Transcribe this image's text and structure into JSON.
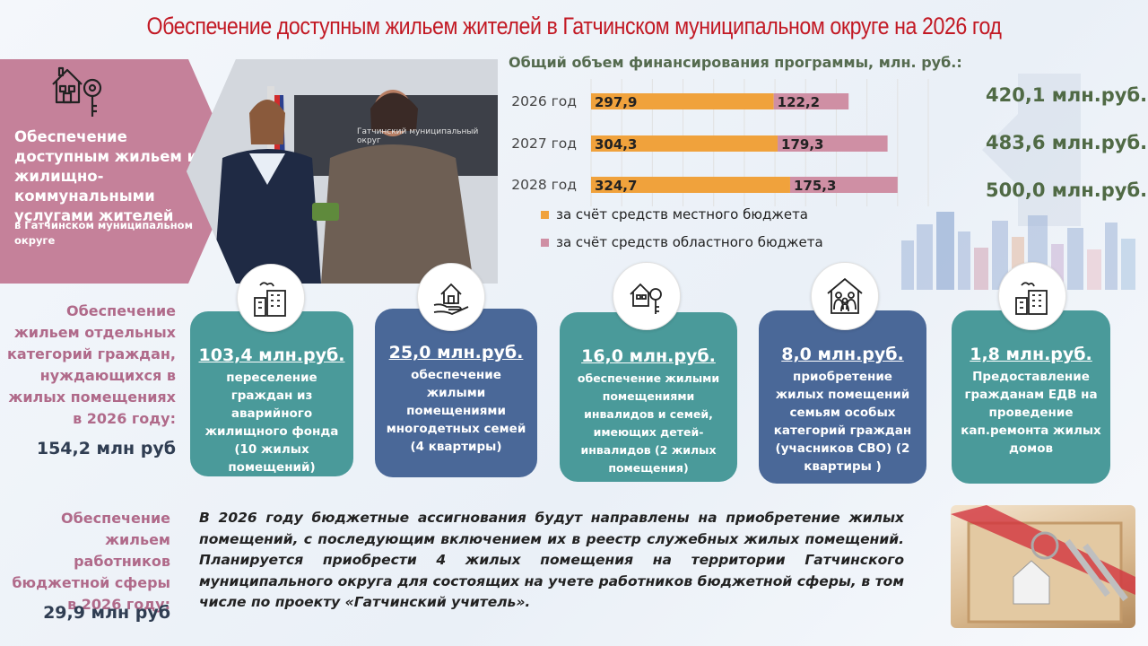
{
  "title": "Обеспечение доступным жильем жителей в Гатчинском муниципальном округе на 2026 год",
  "left_panel": {
    "main": "Обеспечение доступным жильем и жилищно-коммунальными услугами жителей",
    "sub": "в Гатчинском муниципальном округе"
  },
  "chart_title": "Общий объем финансирования программы, млн. руб.:",
  "chart_data": {
    "type": "bar",
    "orientation": "horizontal",
    "stacked": true,
    "categories": [
      "2026 год",
      "2027 год",
      "2028 год"
    ],
    "series": [
      {
        "name": "за счёт средств местного бюджета",
        "color": "#f0a23c",
        "values": [
          297.9,
          304.3,
          324.7
        ],
        "labels": [
          "297,9",
          "304,3",
          "324,7"
        ]
      },
      {
        "name": "за счёт средств областного бюджета",
        "color": "#cf8fa4",
        "values": [
          122.2,
          179.3,
          175.3
        ],
        "labels": [
          "122,2",
          "179,3",
          "175,3"
        ]
      }
    ],
    "xlim": [
      0,
      550
    ],
    "grid": true,
    "legend_position": "bottom-left"
  },
  "totals": [
    "420,1 млн.руб.",
    "483,6 млн.руб.",
    "500,0 млн.руб."
  ],
  "left_categories": [
    {
      "text": "Обеспечение жильем отдельных категорий граждан, нуждающихся в жилых помещениях в 2026 году:",
      "amount": "154,2 млн руб"
    },
    {
      "text": "Обеспечение жильем работников бюджетной сферы в 2026 году:",
      "amount": "29,9 млн руб"
    }
  ],
  "cards": [
    {
      "amount": "103,4 млн.руб.",
      "desc": "переселение граждан из аварийного жилищного фонда (10 жилых помещений)",
      "icon": "apartment-building-icon",
      "color": "teal"
    },
    {
      "amount": "25,0 млн.руб.",
      "desc": "обеспечение жилыми помещениями многодетных семей (4 квартиры)",
      "icon": "house-in-hand-icon",
      "color": "navy"
    },
    {
      "amount": "16,0 млн.руб.",
      "desc": "обеспечение жилыми помещениями инвалидов и семей, имеющих детей-инвалидов (2 жилых помещения)",
      "icon": "house-key-icon",
      "color": "teal"
    },
    {
      "amount": "8,0 млн.руб.",
      "desc": "приобретение жилых помещений семьям особых категорий граждан (учасников СВО) (2 квартиры )",
      "icon": "family-house-icon",
      "color": "navy"
    },
    {
      "amount": "1,8 млн.руб.",
      "desc": "Предоставление гражданам ЕДВ на проведение кап.ремонта жилых домов",
      "icon": "house-repair-icon",
      "color": "teal"
    }
  ],
  "bottom_text": "В 2026 году бюджетные ассигнования будут направлены на приобретение жилых помещений, с последующим включением их в реестр служебных жилых помещений. Планируется приобрести 4 жилых помещения на территории Гатчинского муниципального округа для состоящих на учете работников бюджетной сферы, в том числе по проекту «Гатчинский учитель».",
  "photo_sign": "Гатчинский муниципальный округ"
}
